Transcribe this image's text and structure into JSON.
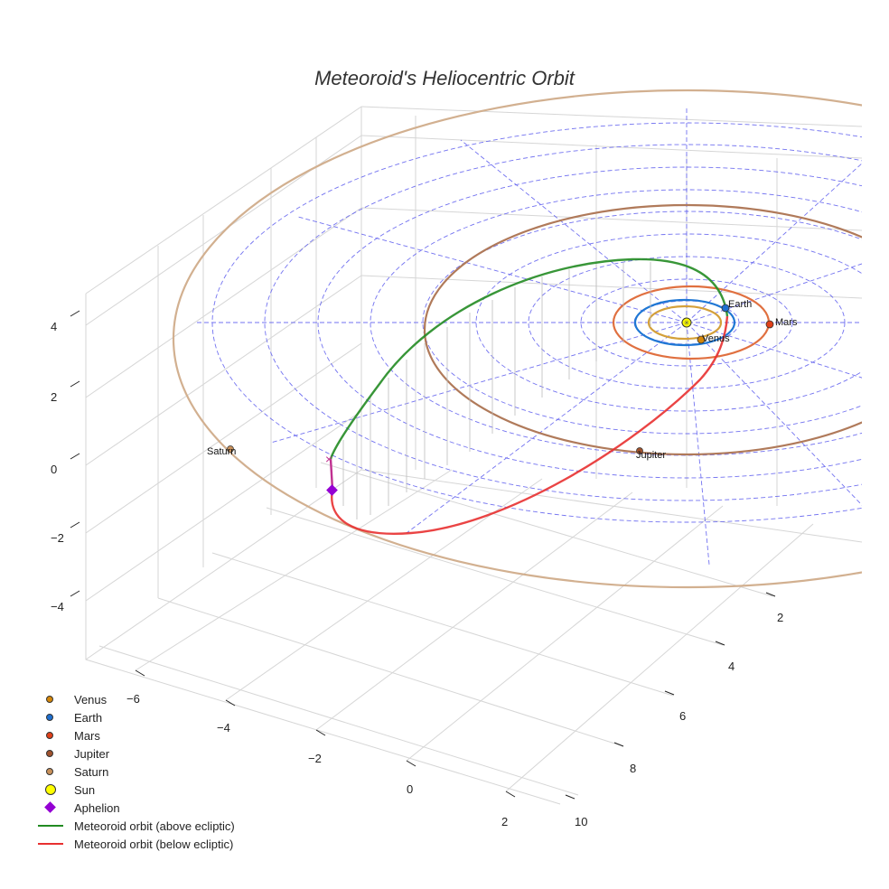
{
  "chart_data": {
    "type": "scatter3d",
    "title": "Meteoroid's Heliocentric Orbit",
    "x_ticks": [
      "2",
      "4",
      "6",
      "8",
      "10"
    ],
    "y_ticks": [
      "−6",
      "−4",
      "−2",
      "0",
      "2"
    ],
    "z_ticks": [
      "4",
      "2",
      "0",
      "−2",
      "−4"
    ],
    "planets": [
      {
        "name": "Venus",
        "orbit_radius_au": 0.72,
        "color": "#d4870a",
        "orbit_color": "#d4a03a"
      },
      {
        "name": "Earth",
        "orbit_radius_au": 1.0,
        "color": "#1f6fcf",
        "orbit_color": "#1f77d4"
      },
      {
        "name": "Mars",
        "orbit_radius_au": 1.52,
        "color": "#e0401a",
        "orbit_color": "#e07040"
      },
      {
        "name": "Jupiter",
        "orbit_radius_au": 5.2,
        "color": "#a0522d",
        "orbit_color": "#b07a5a"
      },
      {
        "name": "Saturn",
        "orbit_radius_au": 9.5,
        "color": "#c8905a",
        "orbit_color": "#d2b090"
      }
    ],
    "sun": {
      "name": "Sun",
      "color": "#ffff00"
    },
    "aphelion": {
      "name": "Aphelion",
      "color": "#9400d3"
    },
    "series": [
      {
        "name": "Meteoroid orbit (above ecliptic)",
        "color": "#2e8b2e"
      },
      {
        "name": "Meteoroid orbit (below ecliptic)",
        "color": "#e03030"
      }
    ]
  },
  "legend": [
    {
      "label": "Venus",
      "kind": "dot",
      "color": "#d4870a"
    },
    {
      "label": "Earth",
      "kind": "dot",
      "color": "#1f6fcf"
    },
    {
      "label": "Mars",
      "kind": "dot",
      "color": "#e0401a"
    },
    {
      "label": "Jupiter",
      "kind": "dot",
      "color": "#a0522d"
    },
    {
      "label": "Saturn",
      "kind": "dot",
      "color": "#c8905a"
    },
    {
      "label": "Sun",
      "kind": "bigdot",
      "color": "#ffff00"
    },
    {
      "label": "Aphelion",
      "kind": "diamond",
      "color": "#9400d3"
    },
    {
      "label": "Meteoroid orbit (above ecliptic)",
      "kind": "line",
      "color": "#228b22"
    },
    {
      "label": "Meteoroid orbit (below ecliptic)",
      "kind": "line",
      "color": "#e83030"
    }
  ]
}
